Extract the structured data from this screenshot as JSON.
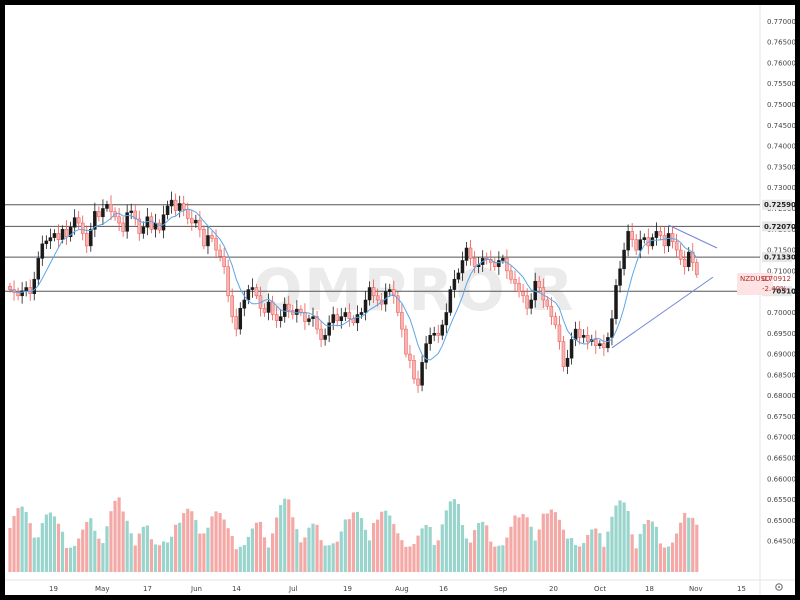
{
  "colors": {
    "up": "#26a69a",
    "down": "#ef5350",
    "up_fill": "#1a1a1a",
    "down_fill": "#f5b5b3",
    "ma": "#5aa7e8",
    "level": "#555555",
    "trend": "#6f86d8",
    "vol_up": "#9ad5cd",
    "vol_down": "#f4a9a6",
    "price_tag_bg": "#fde3e3"
  },
  "watermark": "OMPRO R",
  "price_tag": {
    "symbol": "NZDUSD",
    "price": "0.70912",
    "change": "-2.40%"
  },
  "chart_data": {
    "type": "candlestick",
    "ylim": [
      0.64,
      0.772
    ],
    "y_ticks": [
      "0.77000",
      "0.76500",
      "0.76000",
      "0.75500",
      "0.75000",
      "0.74500",
      "0.74000",
      "0.73500",
      "0.73000",
      "0.72500",
      "0.72000",
      "0.71500",
      "0.71000",
      "0.70500",
      "0.70000",
      "0.69500",
      "0.69000",
      "0.68500",
      "0.68000",
      "0.67500",
      "0.67000",
      "0.66500",
      "0.66000",
      "0.65500",
      "0.65000",
      "0.64500"
    ],
    "x_ticks": [
      "19",
      "May",
      "17",
      "Jun",
      "14",
      "Jul",
      "19",
      "Aug",
      "16",
      "Sep",
      "20",
      "Oct",
      "18",
      "Nov",
      "15"
    ],
    "levels": [
      {
        "value": 0.7259,
        "label": "0.72590"
      },
      {
        "value": 0.7207,
        "label": "0.72070"
      },
      {
        "value": 0.7133,
        "label": "0.71330"
      },
      {
        "value": 0.7051,
        "label": "0.70510"
      }
    ],
    "trendlines": [
      {
        "from": {
          "bar": 149,
          "y": 0.6915
        },
        "to": {
          "bar": 174,
          "y": 0.7085
        }
      },
      {
        "from": {
          "bar": 163,
          "y": 0.721
        },
        "to": {
          "bar": 175,
          "y": 0.7155
        }
      }
    ],
    "closes": [
      0.7055,
      0.7048,
      0.704,
      0.7052,
      0.706,
      0.7045,
      0.708,
      0.713,
      0.7165,
      0.7172,
      0.718,
      0.719,
      0.7175,
      0.72,
      0.7182,
      0.7205,
      0.7228,
      0.7215,
      0.719,
      0.716,
      0.72,
      0.7243,
      0.723,
      0.725,
      0.726,
      0.7242,
      0.723,
      0.7215,
      0.7195,
      0.724,
      0.7244,
      0.7225,
      0.719,
      0.7205,
      0.723,
      0.72,
      0.7215,
      0.7198,
      0.7235,
      0.7256,
      0.727,
      0.7245,
      0.7262,
      0.7248,
      0.7226,
      0.7215,
      0.7222,
      0.72,
      0.716,
      0.7185,
      0.7178,
      0.715,
      0.7135,
      0.711,
      0.704,
      0.699,
      0.696,
      0.701,
      0.703,
      0.7055,
      0.706,
      0.704,
      0.701,
      0.7,
      0.7025,
      0.6995,
      0.698,
      0.699,
      0.702,
      0.7005,
      0.6995,
      0.7008,
      0.7,
      0.6978,
      0.6985,
      0.699,
      0.696,
      0.6935,
      0.6945,
      0.6975,
      0.6995,
      0.698,
      0.699,
      0.7,
      0.6985,
      0.6975,
      0.6995,
      0.7,
      0.703,
      0.706,
      0.704,
      0.703,
      0.702,
      0.705,
      0.7055,
      0.704,
      0.7,
      0.696,
      0.69,
      0.6885,
      0.684,
      0.6825,
      0.688,
      0.6925,
      0.6945,
      0.695,
      0.6945,
      0.697,
      0.7,
      0.7055,
      0.708,
      0.7095,
      0.7125,
      0.7155,
      0.713,
      0.711,
      0.7115,
      0.713,
      0.7128,
      0.712,
      0.711,
      0.7125,
      0.713,
      0.71,
      0.708,
      0.707,
      0.705,
      0.704,
      0.701,
      0.703,
      0.7075,
      0.706,
      0.703,
      0.7015,
      0.699,
      0.697,
      0.693,
      0.687,
      0.689,
      0.6935,
      0.696,
      0.694,
      0.6945,
      0.693,
      0.6935,
      0.692,
      0.6925,
      0.6915,
      0.694,
      0.6985,
      0.7065,
      0.7105,
      0.715,
      0.7195,
      0.7175,
      0.715,
      0.7175,
      0.718,
      0.716,
      0.718,
      0.7195,
      0.7185,
      0.716,
      0.719,
      0.717,
      0.715,
      0.7128,
      0.711,
      0.7145,
      0.712,
      0.7091
    ]
  }
}
